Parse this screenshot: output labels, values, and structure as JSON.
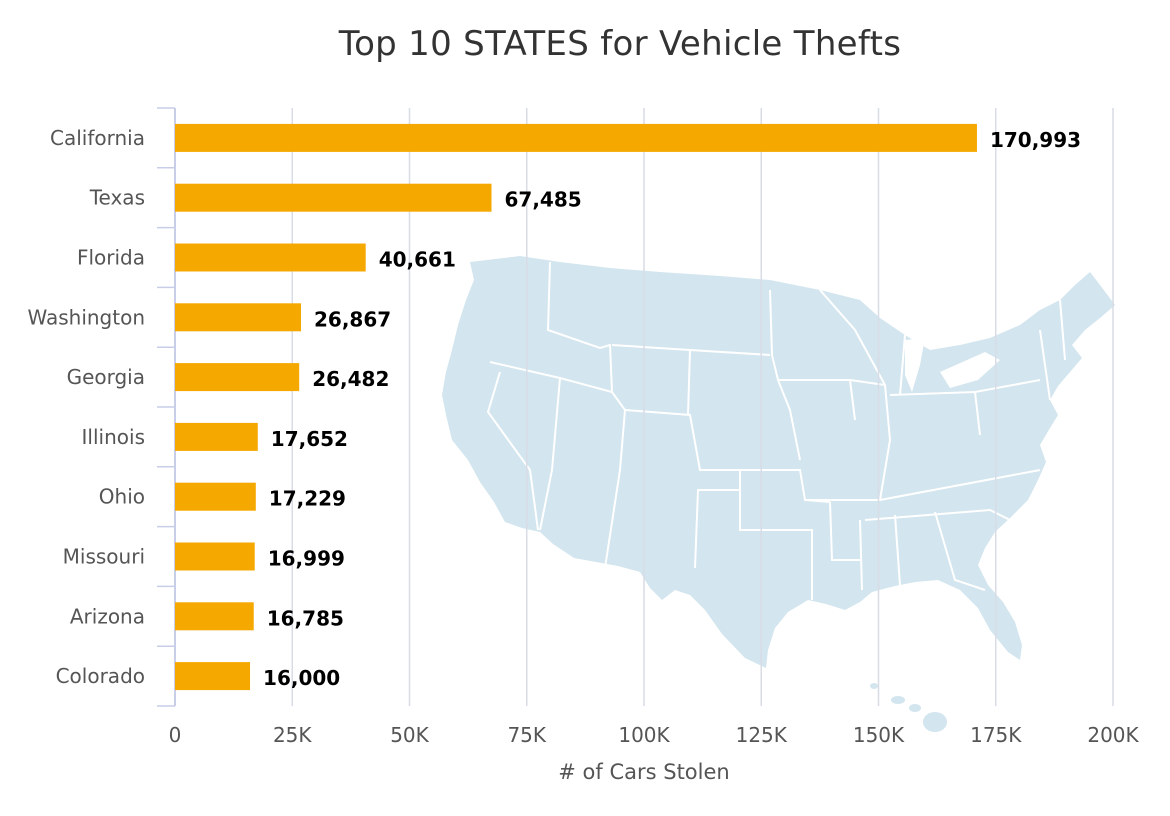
{
  "colors": {
    "bar": "#F5A800",
    "grid": "#D8DCE6",
    "axis": "#C8CEE8",
    "label_text": "#555555",
    "value_text": "#000000",
    "map_fill": "#D3E5EE",
    "map_border": "#FFFFFF"
  },
  "background_image": "us-states-map",
  "chart_data": {
    "type": "bar",
    "orientation": "horizontal",
    "title": "Top 10 STATES for Vehicle Thefts",
    "xlabel": "# of Cars Stolen",
    "ylabel": "",
    "categories": [
      "California",
      "Texas",
      "Florida",
      "Washington",
      "Georgia",
      "Illinois",
      "Ohio",
      "Missouri",
      "Arizona",
      "Colorado"
    ],
    "values": [
      170993,
      67485,
      40661,
      26867,
      26482,
      17652,
      17229,
      16999,
      16785,
      16000
    ],
    "data_labels": [
      "170,993",
      "67,485",
      "40,661",
      "26,867",
      "26,482",
      "17,652",
      "17,229",
      "16,999",
      "16,785",
      "16,000"
    ],
    "xlim": [
      0,
      200000
    ],
    "x_ticks": [
      0,
      25000,
      50000,
      75000,
      100000,
      125000,
      150000,
      175000,
      200000
    ],
    "x_tick_labels": [
      "0",
      "25K",
      "50K",
      "75K",
      "100K",
      "125K",
      "150K",
      "175K",
      "200K"
    ],
    "grid": true,
    "legend": "none"
  }
}
